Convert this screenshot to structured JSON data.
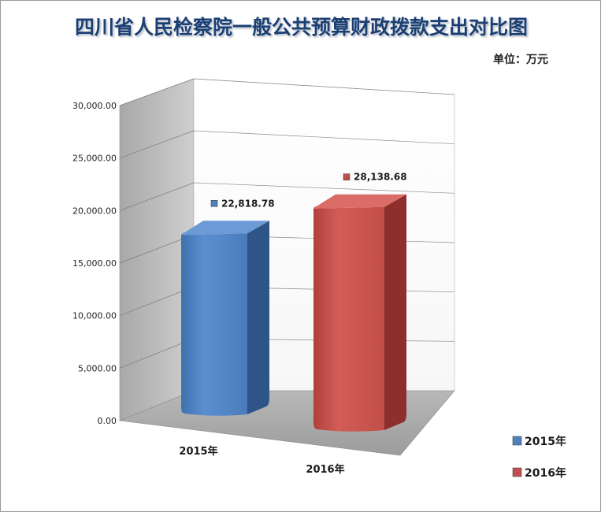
{
  "title": "四川省人民检察院一般公共预算财政拨款支出对比图",
  "unit_label": "单位：万元",
  "chart_data": {
    "type": "bar",
    "categories": [
      "2015年",
      "2016年"
    ],
    "values": [
      22818.78,
      28138.68
    ],
    "value_labels": [
      "22,818.78",
      "28,138.68"
    ],
    "series": [
      {
        "name": "2015年",
        "values": [
          22818.78,
          null
        ],
        "color": "#4f81bd"
      },
      {
        "name": "2016年",
        "values": [
          null,
          28138.68
        ],
        "color": "#c0504d"
      }
    ],
    "yticks": [
      "0.00",
      "5,000.00",
      "10,000.00",
      "15,000.00",
      "20,000.00",
      "25,000.00",
      "30,000.00"
    ],
    "ylim": [
      0,
      30000
    ],
    "grid": true,
    "legend": "bottom-right",
    "style": "3d"
  }
}
